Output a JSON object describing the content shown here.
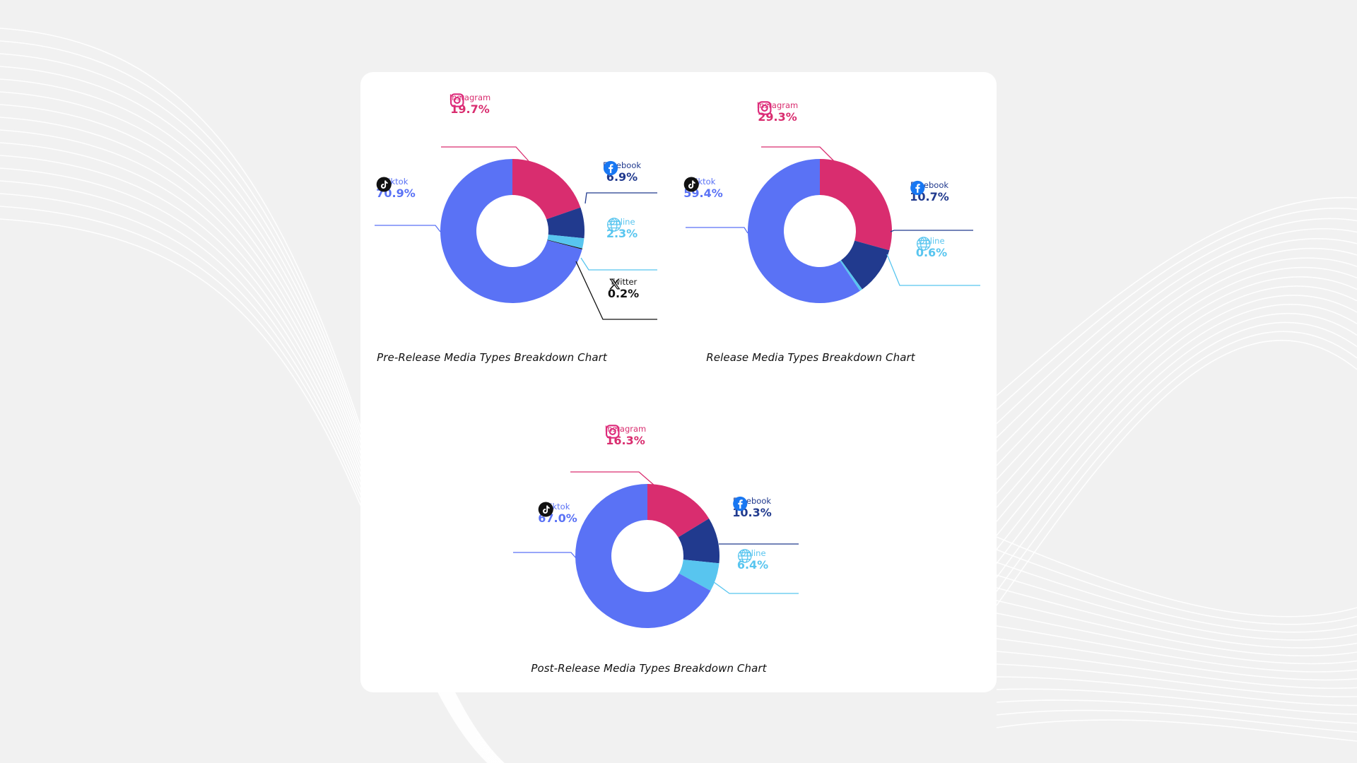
{
  "colors": {
    "tiktok": "#5a72f5",
    "instagram": "#d92d6f",
    "facebook": "#213a8e",
    "online": "#58c5ef",
    "twitter": "#111111"
  },
  "chart_data": [
    {
      "type": "pie",
      "title": "Pre-Release Media Types Breakdown Chart",
      "slices": [
        {
          "name": "Instagram",
          "value": 19.7,
          "label": "19.7%",
          "icon": "instagram-icon",
          "color": "#d92d6f"
        },
        {
          "name": "Facebook",
          "value": 6.9,
          "label": "6.9%",
          "icon": "facebook-icon",
          "color": "#213a8e"
        },
        {
          "name": "Online",
          "value": 2.3,
          "label": "2.3%",
          "icon": "globe-icon",
          "color": "#58c5ef"
        },
        {
          "name": "Twitter",
          "value": 0.2,
          "label": "0.2%",
          "icon": "x-twitter-icon",
          "color": "#111111"
        },
        {
          "name": "Tiktok",
          "value": 70.9,
          "label": "70.9%",
          "icon": "tiktok-icon",
          "color": "#5a72f5"
        }
      ]
    },
    {
      "type": "pie",
      "title": "Release Media Types Breakdown Chart",
      "slices": [
        {
          "name": "Instagram",
          "value": 29.3,
          "label": "29.3%",
          "icon": "instagram-icon",
          "color": "#d92d6f"
        },
        {
          "name": "Facebook",
          "value": 10.7,
          "label": "10.7%",
          "icon": "facebook-icon",
          "color": "#213a8e"
        },
        {
          "name": "Online",
          "value": 0.6,
          "label": "0.6%",
          "icon": "globe-icon",
          "color": "#58c5ef"
        },
        {
          "name": "Tiktok",
          "value": 59.4,
          "label": "59.4%",
          "icon": "tiktok-icon",
          "color": "#5a72f5"
        }
      ]
    },
    {
      "type": "pie",
      "title": "Post-Release Media Types Breakdown Chart",
      "slices": [
        {
          "name": "Instagram",
          "value": 16.3,
          "label": "16.3%",
          "icon": "instagram-icon",
          "color": "#d92d6f"
        },
        {
          "name": "Facebook",
          "value": 10.3,
          "label": "10.3%",
          "icon": "facebook-icon",
          "color": "#213a8e"
        },
        {
          "name": "Online",
          "value": 6.4,
          "label": "6.4%",
          "icon": "globe-icon",
          "color": "#58c5ef"
        },
        {
          "name": "Tiktok",
          "value": 67.0,
          "label": "67.0%",
          "icon": "tiktok-icon",
          "color": "#5a72f5"
        }
      ]
    }
  ]
}
